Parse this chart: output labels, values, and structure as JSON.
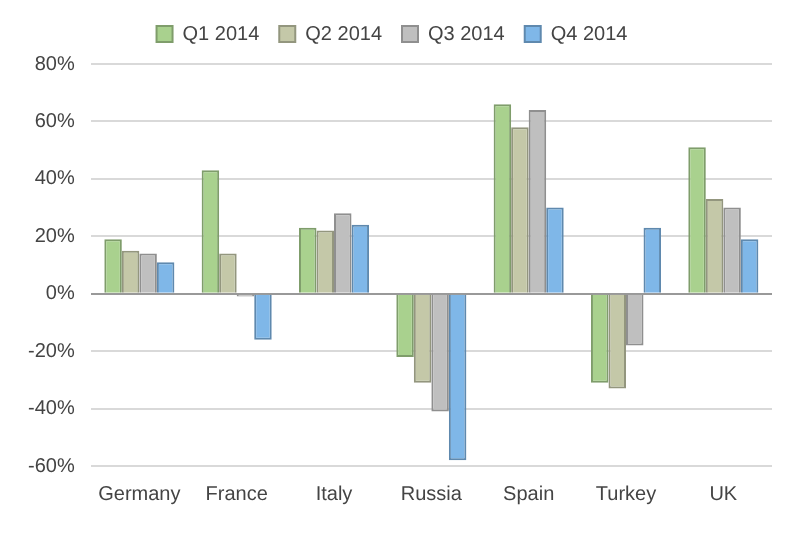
{
  "chart_data": {
    "type": "bar",
    "categories": [
      "Germany",
      "France",
      "Italy",
      "Russia",
      "Spain",
      "Turkey",
      "UK"
    ],
    "series": [
      {
        "name": "Q1 2014",
        "color": "#a9d18e",
        "values": [
          19,
          43,
          23,
          -22,
          66,
          -31,
          51
        ]
      },
      {
        "name": "Q2 2014",
        "color": "#c4c8a8",
        "values": [
          15,
          14,
          22,
          -31,
          58,
          -33,
          33
        ]
      },
      {
        "name": "Q3 2014",
        "color": "#bfbfbf",
        "values": [
          14,
          -1,
          28,
          -41,
          64,
          -18,
          30
        ]
      },
      {
        "name": "Q4 2014",
        "color": "#7fb7e8",
        "values": [
          11,
          -16,
          24,
          -58,
          30,
          23,
          19
        ]
      }
    ],
    "ylim": [
      -60,
      80
    ],
    "yticks": [
      {
        "value": -60,
        "label": "-60%"
      },
      {
        "value": -40,
        "label": "-40%"
      },
      {
        "value": -20,
        "label": "-20%"
      },
      {
        "value": 0,
        "label": "0%"
      },
      {
        "value": 20,
        "label": "20%"
      },
      {
        "value": 40,
        "label": "40%"
      },
      {
        "value": 60,
        "label": "60%"
      },
      {
        "value": 80,
        "label": "80%"
      }
    ],
    "grid": "y",
    "legend": "top"
  }
}
